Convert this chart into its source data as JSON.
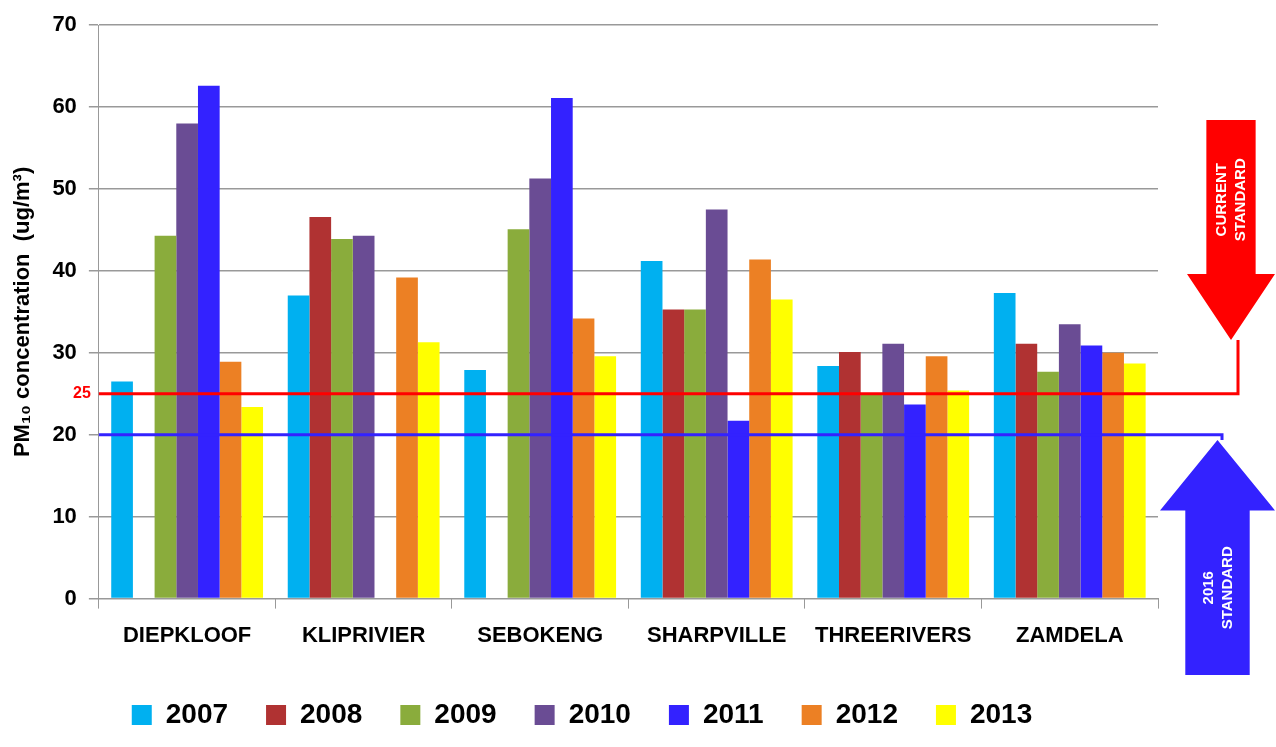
{
  "chart_data": {
    "type": "bar",
    "ylabel": "PM₁₀ concentration  (ug/m³)",
    "categories": [
      "DIEPKLOOF",
      "KLIPRIVIER",
      "SEBOKENG",
      "SHARPVILLE",
      "THREERIVERS",
      "ZAMDELA"
    ],
    "series": [
      {
        "name": "2007",
        "color": "#00b0f0",
        "values": [
          26.5,
          37,
          27.9,
          41.2,
          28.4,
          37.3
        ]
      },
      {
        "name": "2008",
        "color": "#b03232",
        "values": [
          null,
          46.6,
          null,
          35.3,
          30.1,
          31.1
        ]
      },
      {
        "name": "2009",
        "color": "#8aac3c",
        "values": [
          44.3,
          43.9,
          45.1,
          35.3,
          25,
          27.7
        ]
      },
      {
        "name": "2010",
        "color": "#6a4c94",
        "values": [
          58,
          44.3,
          51.3,
          47.5,
          31.1,
          33.5
        ]
      },
      {
        "name": "2011",
        "color": "#3322ff",
        "values": [
          62.6,
          null,
          61.1,
          21.7,
          23.7,
          30.9
        ]
      },
      {
        "name": "2012",
        "color": "#ec8024",
        "values": [
          28.9,
          39.2,
          34.2,
          41.4,
          29.6,
          30
        ]
      },
      {
        "name": "2013",
        "color": "#ffff00",
        "values": [
          23.4,
          31.3,
          29.6,
          36.5,
          25.4,
          28.7
        ]
      }
    ],
    "ylim": [
      0,
      70
    ],
    "yticks": [
      0,
      10,
      20,
      30,
      40,
      50,
      60,
      70
    ],
    "grid": "y",
    "legend": "bottom",
    "ref_lines": [
      {
        "axis": "y",
        "value": 25,
        "label": "25",
        "color": "#ff0000"
      },
      {
        "axis": "y",
        "value": 20,
        "color": "#3322ff"
      }
    ],
    "annotations": [
      "CURRENT STANDARD",
      "2016 STANDARD"
    ]
  }
}
